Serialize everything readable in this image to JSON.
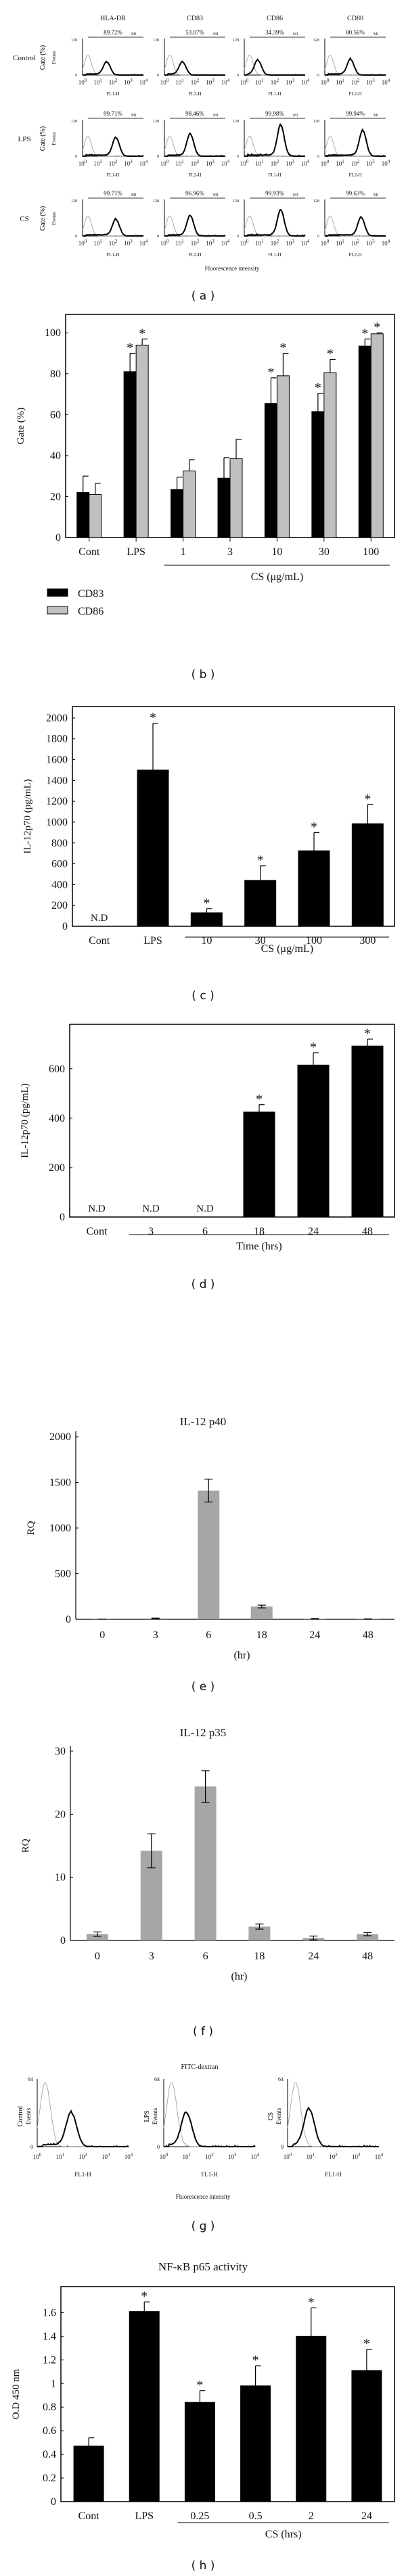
{
  "panels": {
    "a": "( a )",
    "b": "( b )",
    "c": "( c )",
    "d": "( d )",
    "e": "( e )",
    "f": "( f )",
    "g": "( g )",
    "h": "( h )"
  },
  "chart_data": [
    {
      "id": "a",
      "type": "histogram",
      "columns": [
        {
          "marker": "HLA-DR",
          "channel": "FL1-H"
        },
        {
          "marker": "CD83",
          "channel": "FL2-H"
        },
        {
          "marker": "CD86",
          "channel": "FL1-H"
        },
        {
          "marker": "CD80",
          "channel": "FL2-H"
        }
      ],
      "rows": [
        {
          "label": "Control",
          "percents": [
            "89.72%",
            "53.07%",
            "34.39%",
            "80.56%"
          ],
          "peak_log": [
            1.6,
            1.2,
            0.9,
            1.7
          ],
          "peak_height": [
            0.35,
            0.35,
            0.4,
            0.42
          ]
        },
        {
          "label": "LPS",
          "percents": [
            "99.71%",
            "98.46%",
            "99.98%",
            "99.94%"
          ],
          "peak_log": [
            2.2,
            1.7,
            2.4,
            2.5
          ],
          "peak_height": [
            0.5,
            0.6,
            0.85,
            0.7
          ]
        },
        {
          "label": "CS",
          "percents": [
            "99.71%",
            "96.96%",
            "99.93%",
            "99.63%"
          ],
          "peak_log": [
            2.2,
            1.7,
            2.4,
            2.4
          ],
          "peak_height": [
            0.45,
            0.55,
            0.7,
            0.5
          ]
        }
      ],
      "y_label": "Gate (%)",
      "y_sublabel": "Events",
      "y_ticks": [
        "0",
        "128"
      ],
      "gate_label": "M1",
      "x_tick_base": "10",
      "x_tick_exponents": [
        "0",
        "1",
        "2",
        "3",
        "4"
      ],
      "xlabel": "Fluorescence intensity"
    },
    {
      "id": "b",
      "type": "bar",
      "categories": [
        "Cont",
        "LPS",
        "1",
        "3",
        "10",
        "30",
        "100"
      ],
      "series": [
        {
          "name": "CD83",
          "color": "#000000",
          "values": [
            22,
            81,
            23.5,
            29,
            65.5,
            61.5,
            93.5
          ],
          "err": [
            8,
            9,
            6,
            10,
            12.5,
            9,
            3.5
          ],
          "stars": [
            false,
            true,
            false,
            false,
            true,
            true,
            true
          ]
        },
        {
          "name": "CD86",
          "color": "#c0c0c0",
          "values": [
            21,
            94,
            32.5,
            38.5,
            79,
            80.5,
            99.5
          ],
          "err": [
            5.5,
            3,
            5.5,
            9.5,
            11,
            6.5,
            0.5
          ],
          "stars": [
            false,
            true,
            false,
            false,
            true,
            true,
            true
          ]
        }
      ],
      "ylabel": "Gate (%)",
      "yticks": [
        0,
        20,
        40,
        60,
        80,
        100
      ],
      "ylim": [
        0,
        109
      ],
      "group_label": "CS (μg/mL)",
      "group_range": [
        2,
        6
      ],
      "star_symbol": "*"
    },
    {
      "id": "c",
      "type": "bar",
      "categories": [
        "Cont",
        "LPS",
        "10",
        "30",
        "100",
        "300"
      ],
      "series": [
        {
          "name": "IL-12p70",
          "color": "#000000",
          "values": [
            null,
            1500,
            130,
            440,
            725,
            985
          ],
          "err": [
            0,
            450,
            40,
            140,
            175,
            185
          ],
          "stars": [
            false,
            true,
            true,
            true,
            true,
            true
          ]
        }
      ],
      "ylabel": "IL-12p70 (pg/mL)",
      "yticks": [
        0,
        200,
        400,
        600,
        800,
        1000,
        1200,
        1400,
        1600,
        1800,
        2000
      ],
      "ylim": [
        0,
        2110
      ],
      "group_label": "CS (μg/mL)",
      "group_range": [
        2,
        5
      ],
      "nd_label": "N.D",
      "star_symbol": "*"
    },
    {
      "id": "d",
      "type": "bar",
      "categories": [
        "Cont",
        "3",
        "6",
        "18",
        "24",
        "48"
      ],
      "series": [
        {
          "name": "IL-12p70",
          "color": "#000000",
          "values": [
            null,
            null,
            null,
            425,
            615,
            692
          ],
          "err": [
            0,
            0,
            0,
            30,
            50,
            28
          ],
          "stars": [
            false,
            false,
            false,
            true,
            true,
            true
          ]
        }
      ],
      "ylabel": "IL-12p70 (pg/mL)",
      "yticks": [
        0,
        200,
        400,
        600
      ],
      "ylim": [
        0,
        780
      ],
      "group_label": "Time (hrs)",
      "group_range": [
        1,
        5
      ],
      "nd_label": "N.D",
      "star_symbol": "*"
    },
    {
      "id": "e",
      "type": "bar",
      "title": "IL-12 p40",
      "categories": [
        "0",
        "3",
        "6",
        "18",
        "24",
        "48"
      ],
      "series": [
        {
          "name": "RQ",
          "color": "#a6a6a6",
          "values": [
            2,
            10,
            1410,
            140,
            5,
            3
          ],
          "err": [
            1,
            3,
            125,
            15,
            3,
            2
          ],
          "stars": [
            false,
            false,
            false,
            false,
            false,
            false
          ]
        }
      ],
      "ylabel": "RQ",
      "yticks": [
        0,
        500,
        1000,
        1500,
        2000
      ],
      "ylim": [
        0,
        2000
      ],
      "xlabel": "(hr)"
    },
    {
      "id": "f",
      "type": "bar",
      "title": "IL-12 p35",
      "categories": [
        "0",
        "3",
        "6",
        "18",
        "24",
        "48"
      ],
      "series": [
        {
          "name": "RQ",
          "color": "#a6a6a6",
          "values": [
            1.0,
            14.2,
            24.4,
            2.2,
            0.4,
            1.0
          ],
          "err": [
            0.35,
            2.7,
            2.5,
            0.4,
            0.3,
            0.25
          ],
          "stars": [
            false,
            false,
            false,
            false,
            false,
            false
          ]
        }
      ],
      "ylabel": "RQ",
      "yticks": [
        0,
        10,
        20,
        30
      ],
      "ylim": [
        0,
        30
      ],
      "xlabel": "(hr)"
    },
    {
      "id": "g",
      "type": "histogram",
      "title": "FITC-dextran",
      "plots": [
        {
          "label": "Control",
          "peak_log": 1.5,
          "peak_height": 0.5
        },
        {
          "label": "LPS",
          "peak_log": 1.0,
          "peak_height": 0.5
        },
        {
          "label": "CS",
          "peak_log": 0.95,
          "peak_height": 0.55
        }
      ],
      "y_sublabel": "Events",
      "y_ticks": [
        "0",
        "64"
      ],
      "channel": "FL1-H",
      "x_tick_base": "10",
      "x_tick_exponents": [
        "0",
        "1",
        "2",
        "3",
        "4"
      ],
      "xlabel": "Fluorescence intensity"
    },
    {
      "id": "h",
      "type": "bar",
      "title": "NF-κB p65 activity",
      "categories": [
        "Cont",
        "LPS",
        "0.25",
        "0.5",
        "2",
        "24"
      ],
      "series": [
        {
          "name": "O.D 450 nm",
          "color": "#000000",
          "values": [
            0.47,
            1.61,
            0.84,
            0.98,
            1.4,
            1.11
          ],
          "err": [
            0.07,
            0.08,
            0.1,
            0.17,
            0.24,
            0.18
          ],
          "stars": [
            false,
            true,
            true,
            true,
            true,
            true
          ]
        }
      ],
      "ylabel": "O.D 450 nm",
      "yticks": [
        0,
        0.2,
        0.4,
        0.6,
        0.8,
        1,
        1.2,
        1.4,
        1.6
      ],
      "ylim": [
        0,
        1.82
      ],
      "group_label": "CS (hrs)",
      "group_range": [
        2,
        5
      ],
      "star_symbol": "*"
    }
  ]
}
